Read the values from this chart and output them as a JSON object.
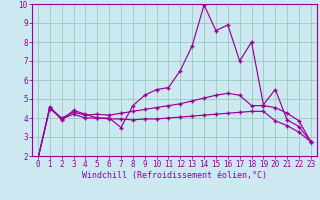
{
  "x": [
    0,
    1,
    2,
    3,
    4,
    5,
    6,
    7,
    8,
    9,
    10,
    11,
    12,
    13,
    14,
    15,
    16,
    17,
    18,
    19,
    20,
    21,
    22,
    23
  ],
  "line1": [
    1.85,
    4.6,
    3.9,
    4.4,
    4.2,
    4.0,
    4.0,
    3.5,
    4.65,
    5.2,
    5.5,
    5.6,
    6.5,
    7.8,
    9.95,
    8.6,
    8.9,
    7.0,
    8.0,
    4.7,
    5.5,
    3.9,
    3.55,
    2.75
  ],
  "line2": [
    1.85,
    4.55,
    4.0,
    4.3,
    4.15,
    4.2,
    4.15,
    4.25,
    4.35,
    4.45,
    4.55,
    4.65,
    4.75,
    4.9,
    5.05,
    5.2,
    5.3,
    5.2,
    4.65,
    4.65,
    4.55,
    4.25,
    3.85,
    2.75
  ],
  "line3": [
    1.85,
    4.5,
    3.95,
    4.2,
    4.0,
    4.0,
    3.95,
    3.95,
    3.9,
    3.95,
    3.95,
    4.0,
    4.05,
    4.1,
    4.15,
    4.2,
    4.25,
    4.3,
    4.35,
    4.35,
    3.85,
    3.6,
    3.25,
    2.75
  ],
  "line_color": "#990099",
  "bg_color": "#cce8f0",
  "grid_color": "#99ccbb",
  "xlabel": "Windchill (Refroidissement éolien,°C)",
  "ylim": [
    2,
    10
  ],
  "xlim": [
    -0.5,
    23.5
  ],
  "yticks": [
    2,
    3,
    4,
    5,
    6,
    7,
    8,
    9,
    10
  ],
  "xticks": [
    0,
    1,
    2,
    3,
    4,
    5,
    6,
    7,
    8,
    9,
    10,
    11,
    12,
    13,
    14,
    15,
    16,
    17,
    18,
    19,
    20,
    21,
    22,
    23
  ],
  "tick_fontsize": 5.5,
  "xlabel_fontsize": 6.0
}
